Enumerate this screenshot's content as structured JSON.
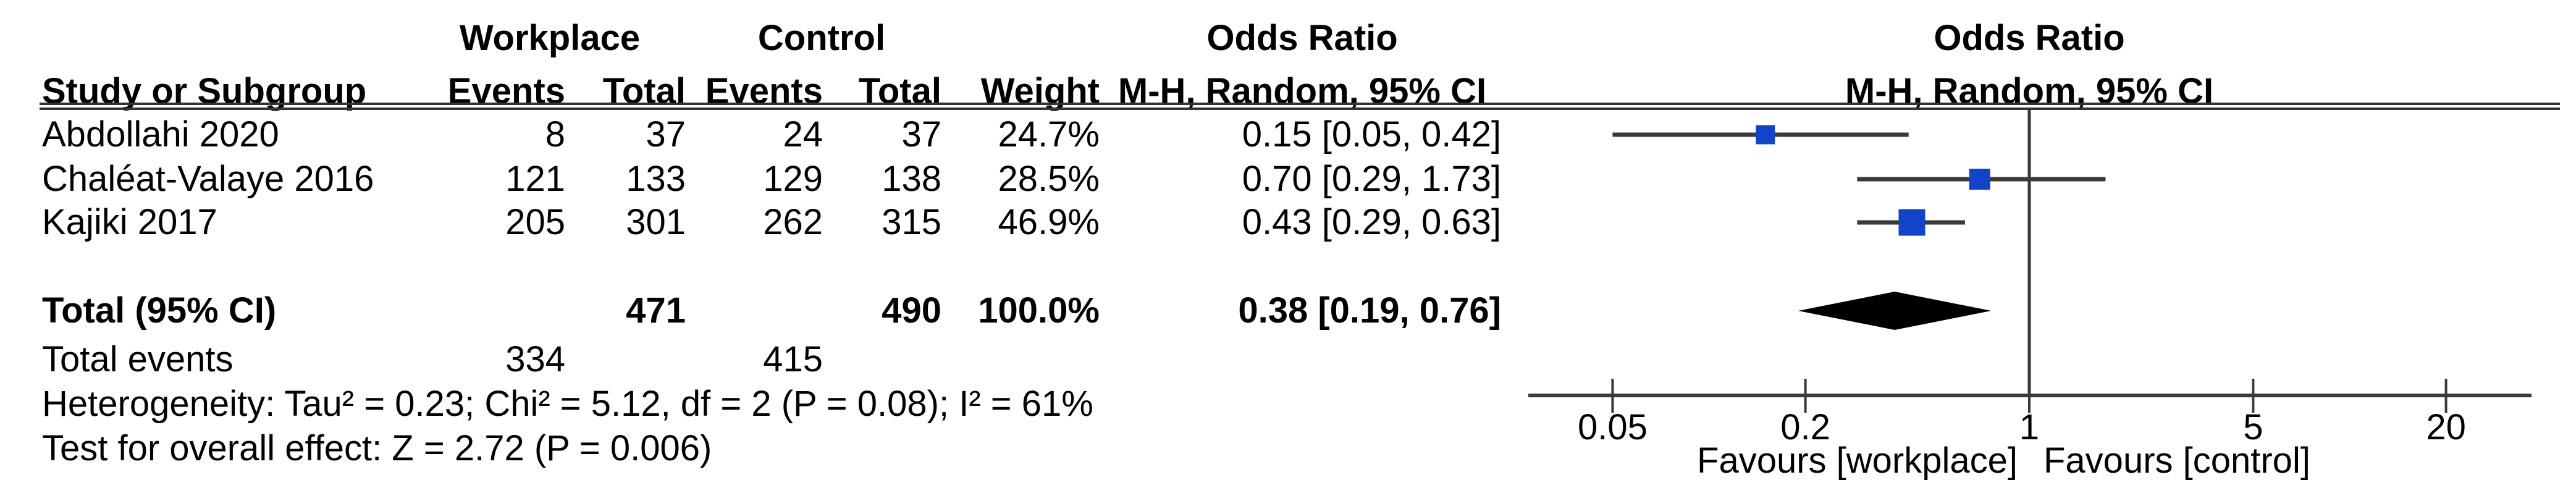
{
  "colors": {
    "marker_blue": "#1243c8",
    "line_gray": "#3a3a3a",
    "text": "#000000",
    "background": "#ffffff"
  },
  "header": {
    "group1": "Workplace",
    "group2": "Control",
    "study": "Study or Subgroup",
    "events": "Events",
    "total": "Total",
    "weight": "Weight",
    "or_col_title": "Odds Ratio",
    "or_col_sub": "M-H, Random, 95% CI",
    "plot_title": "Odds Ratio",
    "plot_sub": "M-H, Random, 95% CI"
  },
  "chart_data": {
    "type": "forest",
    "effect_measure": "Odds Ratio",
    "method": "M-H, Random, 95% CI",
    "axis": {
      "scale": "log",
      "ticks": [
        0.05,
        0.2,
        1,
        5,
        20
      ],
      "tick_labels": [
        "0.05",
        "0.2",
        "1",
        "5",
        "20"
      ],
      "domain": [
        0.027,
        38
      ],
      "null_line": 1,
      "favours_left": "Favours [workplace]",
      "favours_right": "Favours [control]"
    },
    "studies": [
      {
        "name": "Abdollahi 2020",
        "events_workplace": "8",
        "total_workplace": "37",
        "events_control": "24",
        "total_control": "37",
        "weight": "24.7%",
        "weight_pct": 24.7,
        "or": 0.15,
        "ci_low": 0.05,
        "ci_high": 0.42,
        "or_ci_label": "0.15 [0.05, 0.42]"
      },
      {
        "name": "Chaléat-Valaye 2016",
        "events_workplace": "121",
        "total_workplace": "133",
        "events_control": "129",
        "total_control": "138",
        "weight": "28.5%",
        "weight_pct": 28.5,
        "or": 0.7,
        "ci_low": 0.29,
        "ci_high": 1.73,
        "or_ci_label": "0.70 [0.29, 1.73]"
      },
      {
        "name": "Kajiki 2017",
        "events_workplace": "205",
        "total_workplace": "301",
        "events_control": "262",
        "total_control": "315",
        "weight": "46.9%",
        "weight_pct": 46.9,
        "or": 0.43,
        "ci_low": 0.29,
        "ci_high": 0.63,
        "or_ci_label": "0.43 [0.29, 0.63]"
      }
    ],
    "total": {
      "label": "Total (95% CI)",
      "total_workplace": "471",
      "total_control": "490",
      "weight": "100.0%",
      "or": 0.38,
      "ci_low": 0.19,
      "ci_high": 0.76,
      "or_ci_label": "0.38 [0.19, 0.76]"
    },
    "total_events": {
      "label": "Total events",
      "workplace": "334",
      "control": "415"
    },
    "heterogeneity": "Heterogeneity: Tau² = 0.23; Chi² = 5.12, df = 2 (P = 0.08); I² = 61%",
    "overall_effect": "Test for overall effect: Z = 2.72 (P = 0.006)"
  }
}
